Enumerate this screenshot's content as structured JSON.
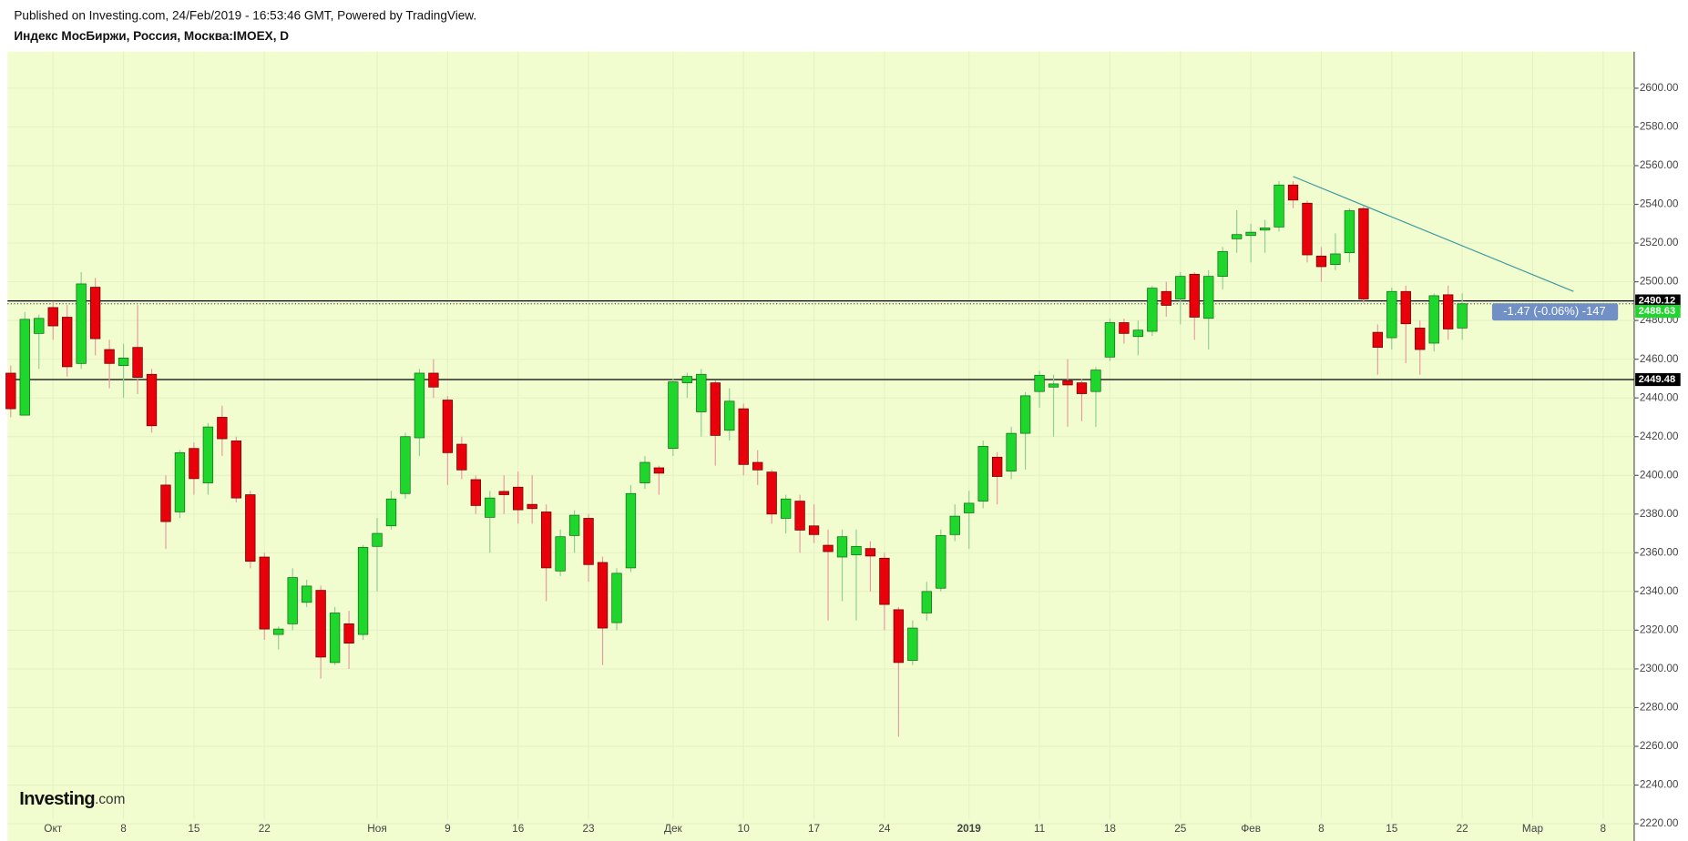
{
  "chart_data": {
    "type": "candlestick",
    "header": "Published on Investing.com, 24/Feb/2019 - 16:53:46 GMT, Powered by TradingView.",
    "title": "Индекс МосБиржи, Россия, Москва:IMOEX, D",
    "logo": [
      "Investing",
      ".com"
    ],
    "change_badge": "-1.47 (-0.06%) -147",
    "categories": [
      null,
      null,
      null,
      "Окт",
      null,
      null,
      null,
      null,
      "8",
      null,
      null,
      null,
      null,
      "15",
      null,
      null,
      null,
      null,
      "22",
      null,
      null,
      null,
      null,
      null,
      null,
      null,
      "Ноя",
      null,
      null,
      null,
      null,
      "9",
      null,
      null,
      null,
      null,
      "16",
      null,
      null,
      null,
      null,
      "23",
      null,
      null,
      null,
      null,
      null,
      "Дек",
      null,
      null,
      null,
      null,
      "10",
      null,
      null,
      null,
      null,
      "17",
      null,
      null,
      null,
      null,
      "24",
      null,
      null,
      null,
      null,
      null,
      "2019",
      null,
      null,
      null,
      null,
      "11",
      null,
      null,
      null,
      null,
      "18",
      null,
      null,
      null,
      null,
      "25",
      null,
      null,
      null,
      null,
      "Фев",
      null,
      null,
      null,
      null,
      "8",
      null,
      null,
      null,
      null,
      "15",
      null,
      null,
      null,
      null,
      "22",
      null,
      null,
      null,
      null,
      "Мар",
      null,
      null,
      null,
      null,
      "8",
      null,
      null
    ],
    "open": [
      2452.8,
      2431.1,
      2473.3,
      2486.7,
      2481.7,
      2457.8,
      2497.2,
      2465,
      2456.7,
      2466.1,
      2452.2,
      2395,
      2381.1,
      2413.9,
      2396.1,
      2430,
      2417.8,
      2390,
      2357.8,
      2317.8,
      2323.3,
      2334.4,
      2340.6,
      2303.3,
      2323.3,
      2317.8,
      2363.3,
      2373.9,
      2390.6,
      2419.4,
      2452.8,
      2438.9,
      2416.1,
      2397.8,
      2378.3,
      2391.7,
      2393.9,
      2385,
      2381.1,
      2350.6,
      2368.9,
      2377.8,
      2355,
      2323.9,
      2352.2,
      2396.1,
      2403.9,
      2413.9,
      2447.8,
      2432.8,
      2447.8,
      2423.3,
      2434.4,
      2406.7,
      2401.7,
      2377.8,
      2386.7,
      2373.9,
      2363.9,
      2357.8,
      2358.9,
      2362.2,
      2357.2,
      2330.6,
      2304.4,
      2328.9,
      2341.7,
      2369.4,
      2380.6,
      2386.7,
      2409.4,
      2402.2,
      2421.7,
      2443.3,
      2445.6,
      2448.9,
      2447.8,
      2443.3,
      2461.1,
      2478.9,
      2471.7,
      2474.4,
      2495,
      2491.1,
      2503.9,
      2481.1,
      2502.8,
      2522.2,
      2523.9,
      2526.7,
      2528.3,
      2550,
      2540.6,
      2513.3,
      2508.9,
      2515,
      2537.8,
      2473.9,
      2471.1,
      2495,
      2476.1,
      2468.3,
      2493.3,
      2476.1,
      null,
      null,
      null,
      null,
      null,
      null,
      null,
      null,
      null,
      null,
      null,
      null
    ],
    "high": [
      2456.7,
      2484.4,
      2483,
      2490,
      2488,
      2505,
      2502,
      2470,
      2468,
      2488,
      2455,
      2400,
      2413,
      2417,
      2427,
      2436,
      2420,
      2392,
      2360,
      2322,
      2352,
      2346,
      2343,
      2332,
      2330,
      2364,
      2378,
      2392,
      2422,
      2455,
      2460,
      2441,
      2420,
      2400,
      2392,
      2400,
      2402,
      2400,
      2385,
      2372,
      2382,
      2380,
      2358,
      2352,
      2395,
      2410,
      2405,
      2450,
      2453,
      2455,
      2449,
      2445,
      2437,
      2413,
      2403,
      2390,
      2390,
      2385,
      2372,
      2372,
      2372,
      2366,
      2360,
      2332,
      2325,
      2345,
      2372,
      2385,
      2392,
      2418,
      2412,
      2425,
      2443,
      2454,
      2452,
      2460,
      2450,
      2456,
      2481,
      2481,
      2480,
      2498,
      2500,
      2505,
      2505,
      2506,
      2518,
      2537,
      2530,
      2532,
      2552,
      2552,
      2542,
      2518,
      2525,
      2538,
      2539,
      2478,
      2497,
      2498,
      2480,
      2494,
      2498,
      2494,
      null,
      null,
      null,
      null,
      null,
      null,
      null,
      null,
      null,
      null,
      null,
      null
    ],
    "low": [
      2430,
      2431,
      2455,
      2470,
      2451,
      2455,
      2462,
      2445,
      2440,
      2442,
      2422,
      2362,
      2378,
      2390,
      2390,
      2410,
      2386,
      2352,
      2315,
      2310,
      2320,
      2332,
      2295,
      2302,
      2300,
      2315,
      2340,
      2372,
      2388,
      2410,
      2440,
      2395,
      2398,
      2380,
      2360,
      2380,
      2375,
      2375,
      2335,
      2348,
      2360,
      2345,
      2302,
      2320,
      2350,
      2393,
      2390,
      2410,
      2440,
      2420,
      2405,
      2418,
      2400,
      2395,
      2375,
      2370,
      2360,
      2365,
      2325,
      2335,
      2325,
      2340,
      2320,
      2265,
      2302,
      2325,
      2340,
      2366,
      2362,
      2383,
      2385,
      2398,
      2403,
      2435,
      2420,
      2425,
      2428,
      2425,
      2459,
      2468,
      2462,
      2472,
      2482,
      2478,
      2470,
      2465,
      2496,
      2515,
      2510,
      2515,
      2526,
      2538,
      2510,
      2500,
      2506,
      2510,
      2489,
      2452,
      2465,
      2458,
      2452,
      2464,
      2470,
      2470,
      null,
      null,
      null,
      null,
      null,
      null,
      null,
      null,
      null,
      null,
      null,
      null
    ],
    "close": [
      2434.4,
      2480.6,
      2481.1,
      2477.2,
      2456.1,
      2498.9,
      2470.6,
      2457.8,
      2460.6,
      2450.6,
      2425.6,
      2376.1,
      2411.7,
      2398.3,
      2425,
      2418.9,
      2388.3,
      2355.6,
      2320.6,
      2320.6,
      2347.2,
      2342.8,
      2306.1,
      2328.9,
      2313.3,
      2362.8,
      2370,
      2387.8,
      2420,
      2452.8,
      2445.6,
      2411.7,
      2402.8,
      2384.4,
      2388.3,
      2390,
      2382.2,
      2382.8,
      2352.2,
      2368.3,
      2379.4,
      2353.9,
      2321.1,
      2349.4,
      2390.6,
      2406.7,
      2401.1,
      2448.3,
      2451.1,
      2452.2,
      2420.6,
      2438.3,
      2405.6,
      2402.8,
      2380,
      2387.8,
      2371.7,
      2369.4,
      2360.6,
      2368.3,
      2363.3,
      2358.3,
      2333.3,
      2303.3,
      2321.1,
      2340,
      2368.9,
      2378.9,
      2385.6,
      2415,
      2399.4,
      2421.7,
      2441.1,
      2451.7,
      2447.2,
      2446.7,
      2442.2,
      2454.4,
      2478.9,
      2473.3,
      2475,
      2496.7,
      2487.8,
      2502.8,
      2481.7,
      2502.8,
      2515.6,
      2524.4,
      2525.6,
      2527.8,
      2550,
      2542.2,
      2513.9,
      2507.8,
      2514.4,
      2536.7,
      2491.1,
      2466.1,
      2495,
      2478.3,
      2465,
      2492.8,
      2475.6,
      2488.63,
      null,
      null,
      null,
      null,
      null,
      null,
      null,
      null,
      null,
      null,
      null,
      null
    ],
    "up_color": "#1fd62d",
    "down_color": "#e8000b",
    "up_wick": "#8fcf95",
    "down_wick": "#e89aa0",
    "ylim": [
      2211.1,
      2618.9
    ],
    "yticks": [
      {
        "value": 2220,
        "label": "2220.00"
      },
      {
        "value": 2240,
        "label": "2240.00"
      },
      {
        "value": 2260,
        "label": "2260.00"
      },
      {
        "value": 2280,
        "label": "2280.00"
      },
      {
        "value": 2300,
        "label": "2300.00"
      },
      {
        "value": 2320,
        "label": "2320.00"
      },
      {
        "value": 2340,
        "label": "2340.00"
      },
      {
        "value": 2360,
        "label": "2360.00"
      },
      {
        "value": 2380,
        "label": "2380.00"
      },
      {
        "value": 2400,
        "label": "2400.00"
      },
      {
        "value": 2420,
        "label": "2420.00"
      },
      {
        "value": 2440,
        "label": "2440.00"
      },
      {
        "value": 2460,
        "label": "2460.00"
      },
      {
        "value": 2480,
        "label": "2480.00"
      },
      {
        "value": 2500,
        "label": "2500.00"
      },
      {
        "value": 2520,
        "label": "2520.00"
      },
      {
        "value": 2540,
        "label": "2540.00"
      },
      {
        "value": 2560,
        "label": "2560.00"
      },
      {
        "value": 2580,
        "label": "2580.00"
      },
      {
        "value": 2600,
        "label": "2600.00"
      }
    ],
    "grid": true,
    "price_lines": [
      {
        "value": 2490.12,
        "color": "#000000",
        "dash": false
      },
      {
        "value": 2488.63,
        "color": "#1fd62d",
        "dash": true
      },
      {
        "value": 2449.48,
        "color": "#000000",
        "dash": false
      }
    ],
    "trendline": {
      "x": [
        91,
        110.9
      ],
      "y": [
        2554.4,
        2495
      ],
      "color": "#3a9aa0"
    }
  }
}
